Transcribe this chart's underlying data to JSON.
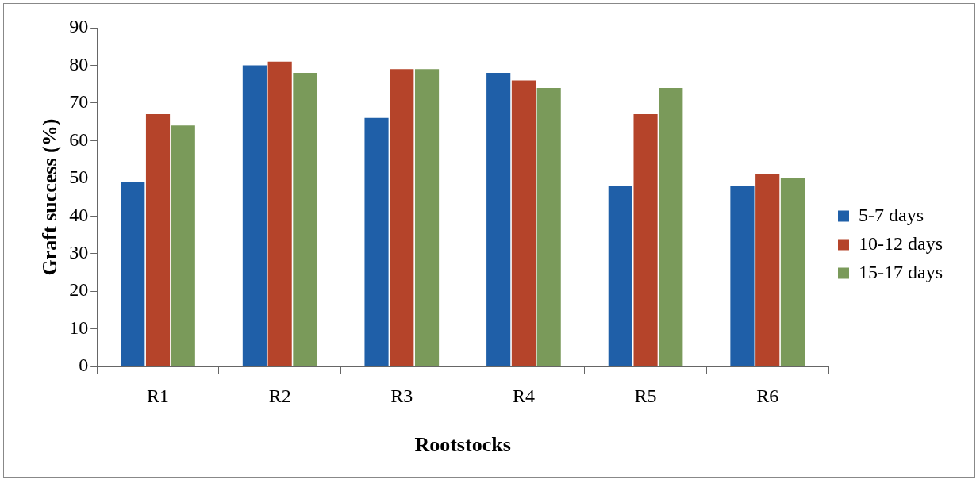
{
  "chart_data": {
    "type": "bar",
    "xlabel": "Rootstocks",
    "ylabel": "Graft success (%)",
    "categories": [
      "R1",
      "R2",
      "R3",
      "R4",
      "R5",
      "R6"
    ],
    "series": [
      {
        "name": "5-7 days",
        "color": "#1f5fa8",
        "values": [
          49,
          80,
          66,
          78,
          48,
          48
        ]
      },
      {
        "name": "10-12 days",
        "color": "#b5442a",
        "values": [
          67,
          81,
          79,
          76,
          67,
          51
        ]
      },
      {
        "name": "15-17 days",
        "color": "#7a9a5a",
        "values": [
          64,
          78,
          79,
          74,
          74,
          50
        ]
      }
    ],
    "ylim": [
      0,
      90
    ],
    "yticks": [
      0,
      10,
      20,
      30,
      40,
      50,
      60,
      70,
      80,
      90
    ],
    "grid": false,
    "legend": "right"
  }
}
